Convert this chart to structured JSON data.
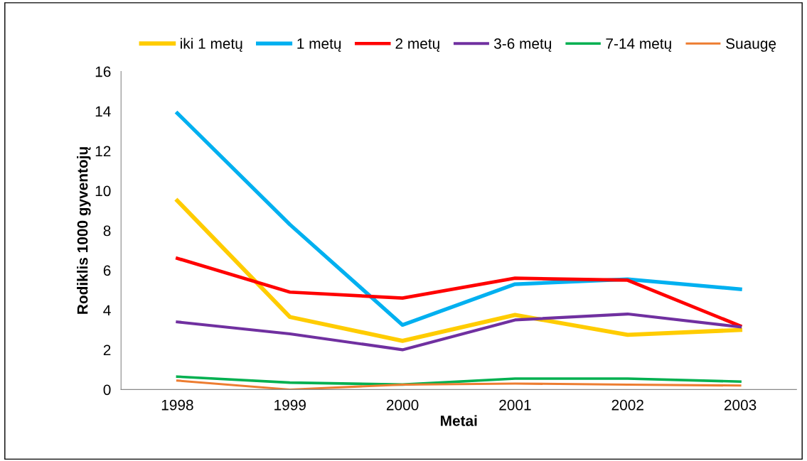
{
  "chart_data": {
    "type": "line",
    "xlabel": "Metai",
    "ylabel": "Rodiklis 1000 gyventojų",
    "categories": [
      "1998",
      "1999",
      "2000",
      "2001",
      "2002",
      "2003"
    ],
    "series": [
      {
        "name": "iki 1 metų",
        "color": "#ffcc00",
        "values": [
          9.5,
          3.65,
          2.45,
          3.75,
          2.75,
          3.0
        ]
      },
      {
        "name": "1 metų",
        "color": "#00b0f0",
        "values": [
          13.9,
          8.3,
          3.25,
          5.3,
          5.55,
          5.05
        ]
      },
      {
        "name": "2 metų",
        "color": "#ff0000",
        "values": [
          6.6,
          4.9,
          4.6,
          5.6,
          5.5,
          3.2
        ]
      },
      {
        "name": "3-6 metų",
        "color": "#7030a0",
        "values": [
          3.4,
          2.8,
          2.0,
          3.5,
          3.8,
          3.15
        ]
      },
      {
        "name": "7-14 metų",
        "color": "#00b050",
        "values": [
          0.65,
          0.35,
          0.25,
          0.55,
          0.55,
          0.4
        ]
      },
      {
        "name": "Suaugę",
        "color": "#ed7d31",
        "values": [
          0.45,
          0.0,
          0.25,
          0.3,
          0.25,
          0.2
        ]
      }
    ],
    "ylim": [
      0,
      16
    ],
    "yticks": [
      0,
      2,
      4,
      6,
      8,
      10,
      12,
      14,
      16
    ],
    "grid": false,
    "legend": "top",
    "marker": "none",
    "line_style": "solid"
  }
}
